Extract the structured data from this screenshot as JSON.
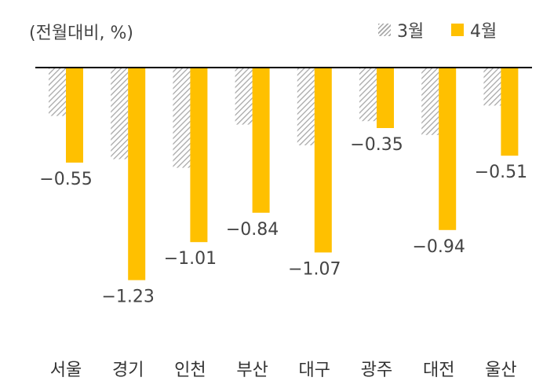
{
  "unit_label": "(전월대비, %)",
  "legend": [
    {
      "name": "3월",
      "color": "#b0b0b0",
      "pattern": "hatch"
    },
    {
      "name": "4월",
      "color": "#FFC000",
      "pattern": "solid"
    }
  ],
  "chart_data": {
    "type": "bar",
    "categories": [
      "서울",
      "경기",
      "인천",
      "부산",
      "대구",
      "광주",
      "대전",
      "울산"
    ],
    "series": [
      {
        "name": "3월",
        "values": [
          -0.28,
          -0.53,
          -0.58,
          -0.33,
          -0.45,
          -0.31,
          -0.39,
          -0.22
        ]
      },
      {
        "name": "4월",
        "values": [
          -0.55,
          -1.23,
          -1.01,
          -0.84,
          -1.07,
          -0.35,
          -0.94,
          -0.51
        ]
      }
    ],
    "data_labels": [
      "-0.55",
      "-1.23",
      "-1.01",
      "-0.84",
      "-1.07",
      "-0.35",
      "-0.94",
      "-0.51"
    ],
    "ylabel": "(전월대비, %)",
    "ylim": [
      -1.35,
      0
    ],
    "grid": false,
    "legend_position": "top-right"
  }
}
